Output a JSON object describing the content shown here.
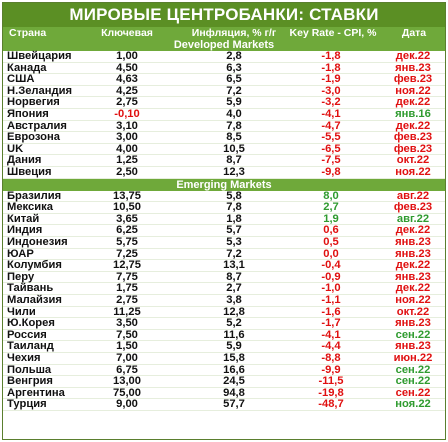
{
  "title": "МИРОВЫЕ ЦЕНТРОБАНКИ: СТАВКИ",
  "headers": {
    "country": "Страна",
    "key_rate": "Ключевая",
    "inflation": "Инфляция, % г/г",
    "real_rate": "Key Rate - CPI, %",
    "date": "Дата"
  },
  "colors": {
    "title_bg": "#5b8f24",
    "header_bg": "#6fa93a",
    "positive": "#2f9b2f",
    "negative": "#e01010"
  },
  "chart_data": {
    "type": "table",
    "sections": [
      {
        "name": "Developed Markets",
        "rows": [
          {
            "country": "Швейцария",
            "key_rate": "1,00",
            "inflation": "2,8",
            "real_rate": "-1,8",
            "date": "дек.22",
            "real_sign": "neg",
            "date_color": "neg"
          },
          {
            "country": "Канада",
            "key_rate": "4,50",
            "inflation": "6,3",
            "real_rate": "-1,8",
            "date": "янв.23",
            "real_sign": "neg",
            "date_color": "neg"
          },
          {
            "country": "США",
            "key_rate": "4,63",
            "inflation": "6,5",
            "real_rate": "-1,9",
            "date": "фев.23",
            "real_sign": "neg",
            "date_color": "neg"
          },
          {
            "country": "Н.Зеландия",
            "key_rate": "4,25",
            "inflation": "7,2",
            "real_rate": "-3,0",
            "date": "ноя.22",
            "real_sign": "neg",
            "date_color": "neg"
          },
          {
            "country": "Норвегия",
            "key_rate": "2,75",
            "inflation": "5,9",
            "real_rate": "-3,2",
            "date": "дек.22",
            "real_sign": "neg",
            "date_color": "neg"
          },
          {
            "country": "Япония",
            "key_rate": "-0,10",
            "inflation": "4,0",
            "real_rate": "-4,1",
            "date": "янв.16",
            "real_sign": "neg",
            "date_color": "pos",
            "key_color": "neg"
          },
          {
            "country": "Австралия",
            "key_rate": "3,10",
            "inflation": "7,8",
            "real_rate": "-4,7",
            "date": "дек.22",
            "real_sign": "neg",
            "date_color": "neg"
          },
          {
            "country": "Еврозона",
            "key_rate": "3,00",
            "inflation": "8,5",
            "real_rate": "-5,5",
            "date": "фев.23",
            "real_sign": "neg",
            "date_color": "neg"
          },
          {
            "country": "UK",
            "key_rate": "4,00",
            "inflation": "10,5",
            "real_rate": "-6,5",
            "date": "фев.23",
            "real_sign": "neg",
            "date_color": "neg"
          },
          {
            "country": "Дания",
            "key_rate": "1,25",
            "inflation": "8,7",
            "real_rate": "-7,5",
            "date": "окт.22",
            "real_sign": "neg",
            "date_color": "neg"
          },
          {
            "country": "Швеция",
            "key_rate": "2,50",
            "inflation": "12,3",
            "real_rate": "-9,8",
            "date": "ноя.22",
            "real_sign": "neg",
            "date_color": "neg"
          }
        ]
      },
      {
        "name": "Emerging Markets",
        "rows": [
          {
            "country": "Бразилия",
            "key_rate": "13,75",
            "inflation": "5,8",
            "real_rate": "8,0",
            "date": "авг.22",
            "real_sign": "pos",
            "date_color": "neg"
          },
          {
            "country": "Мексика",
            "key_rate": "10,50",
            "inflation": "7,8",
            "real_rate": "2,7",
            "date": "фев.23",
            "real_sign": "pos",
            "date_color": "neg"
          },
          {
            "country": "Китай",
            "key_rate": "3,65",
            "inflation": "1,8",
            "real_rate": "1,9",
            "date": "авг.22",
            "real_sign": "pos",
            "date_color": "pos"
          },
          {
            "country": "Индия",
            "key_rate": "6,25",
            "inflation": "5,7",
            "real_rate": "0,6",
            "date": "дек.22",
            "real_sign": "neg",
            "date_color": "neg"
          },
          {
            "country": "Индонезия",
            "key_rate": "5,75",
            "inflation": "5,3",
            "real_rate": "0,5",
            "date": "янв.23",
            "real_sign": "neg",
            "date_color": "neg"
          },
          {
            "country": "ЮАР",
            "key_rate": "7,25",
            "inflation": "7,2",
            "real_rate": "0,0",
            "date": "янв.23",
            "real_sign": "neg",
            "date_color": "neg"
          },
          {
            "country": "Колумбия",
            "key_rate": "12,75",
            "inflation": "13,1",
            "real_rate": "-0,4",
            "date": "дек.22",
            "real_sign": "neg",
            "date_color": "neg"
          },
          {
            "country": "Перу",
            "key_rate": "7,75",
            "inflation": "8,7",
            "real_rate": "-0,9",
            "date": "янв.23",
            "real_sign": "neg",
            "date_color": "neg"
          },
          {
            "country": "Тайвань",
            "key_rate": "1,75",
            "inflation": "2,7",
            "real_rate": "-1,0",
            "date": "дек.22",
            "real_sign": "neg",
            "date_color": "neg"
          },
          {
            "country": "Малайзия",
            "key_rate": "2,75",
            "inflation": "3,8",
            "real_rate": "-1,1",
            "date": "ноя.22",
            "real_sign": "neg",
            "date_color": "neg"
          },
          {
            "country": "Чили",
            "key_rate": "11,25",
            "inflation": "12,8",
            "real_rate": "-1,6",
            "date": "окт.22",
            "real_sign": "neg",
            "date_color": "neg"
          },
          {
            "country": "Ю.Корея",
            "key_rate": "3,50",
            "inflation": "5,2",
            "real_rate": "-1,7",
            "date": "янв.23",
            "real_sign": "neg",
            "date_color": "neg"
          },
          {
            "country": "Россия",
            "key_rate": "7,50",
            "inflation": "11,6",
            "real_rate": "-4,1",
            "date": "сен.22",
            "real_sign": "neg",
            "date_color": "pos"
          },
          {
            "country": "Таиланд",
            "key_rate": "1,50",
            "inflation": "5,9",
            "real_rate": "-4,4",
            "date": "янв.23",
            "real_sign": "neg",
            "date_color": "neg"
          },
          {
            "country": "Чехия",
            "key_rate": "7,00",
            "inflation": "15,8",
            "real_rate": "-8,8",
            "date": "июн.22",
            "real_sign": "neg",
            "date_color": "neg"
          },
          {
            "country": "Польша",
            "key_rate": "6,75",
            "inflation": "16,6",
            "real_rate": "-9,9",
            "date": "сен.22",
            "real_sign": "neg",
            "date_color": "pos"
          },
          {
            "country": "Венгрия",
            "key_rate": "13,00",
            "inflation": "24,5",
            "real_rate": "-11,5",
            "date": "сен.22",
            "real_sign": "neg",
            "date_color": "pos"
          },
          {
            "country": "Аргентина",
            "key_rate": "75,00",
            "inflation": "94,8",
            "real_rate": "-19,8",
            "date": "сен.22",
            "real_sign": "neg",
            "date_color": "neg"
          },
          {
            "country": "Турция",
            "key_rate": "9,00",
            "inflation": "57,7",
            "real_rate": "-48,7",
            "date": "ноя.22",
            "real_sign": "neg",
            "date_color": "pos"
          }
        ]
      }
    ]
  }
}
